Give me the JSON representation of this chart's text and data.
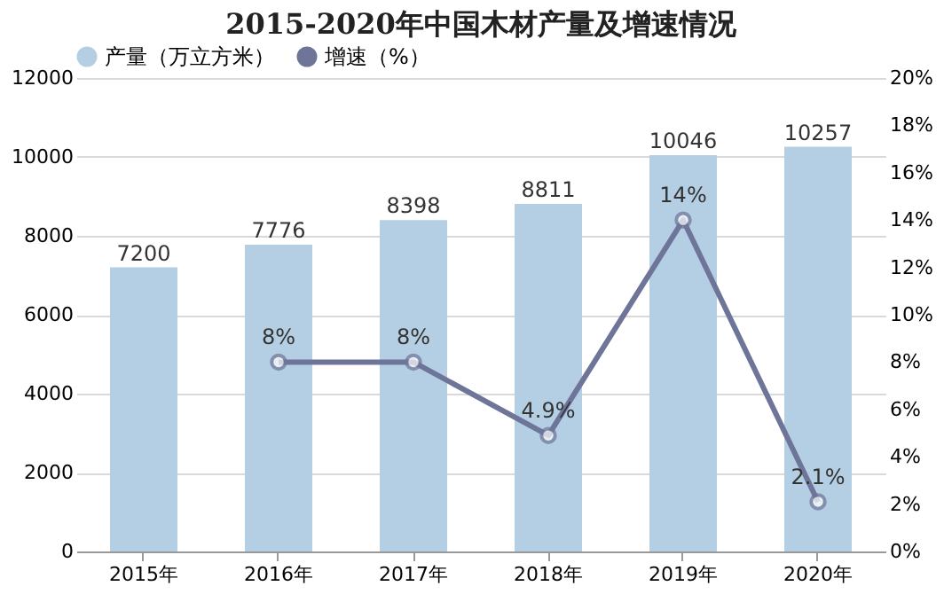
{
  "chart_data": {
    "type": "bar",
    "title": "2015-2020年中国木材产量及增速情况",
    "categories": [
      "2015年",
      "2016年",
      "2017年",
      "2018年",
      "2019年",
      "2020年"
    ],
    "series": [
      {
        "name": "产量（万立方米）",
        "type": "bar",
        "color": "#b4cfe3",
        "values": [
          7200,
          7776,
          8398,
          8811,
          10046,
          10257
        ]
      },
      {
        "name": "增速（%）",
        "type": "line",
        "axis": "y2",
        "color": "#6e7599",
        "values": [
          null,
          8,
          8,
          4.9,
          14,
          2.1
        ],
        "value_labels": [
          null,
          "8%",
          "8%",
          "4.9%",
          "14%",
          "2.1%"
        ]
      }
    ],
    "ylim": [
      0,
      12000
    ],
    "yticks": [
      0,
      2000,
      4000,
      6000,
      8000,
      10000,
      12000
    ],
    "y2lim": [
      0,
      20
    ],
    "y2ticks": [
      {
        "value": 0,
        "label": "0%"
      },
      {
        "value": 2,
        "label": "2%"
      },
      {
        "value": 4,
        "label": "4%"
      },
      {
        "value": 6,
        "label": "6%"
      },
      {
        "value": 8,
        "label": "8%"
      },
      {
        "value": 10,
        "label": "10%"
      },
      {
        "value": 12,
        "label": "12%"
      },
      {
        "value": 14,
        "label": "14%"
      },
      {
        "value": 16,
        "label": "16%"
      },
      {
        "value": 18,
        "label": "18%"
      },
      {
        "value": 20,
        "label": "20%"
      }
    ],
    "data_labels": true,
    "grid": "y",
    "legend": "top",
    "marker": "circle",
    "line_style": "solid"
  }
}
